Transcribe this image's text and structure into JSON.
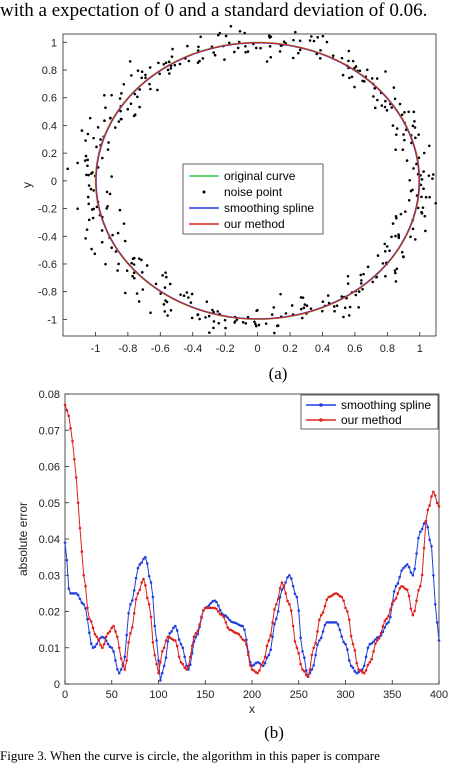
{
  "header": {
    "text": "with a expectation of 0 and a standard deviation of 0.06."
  },
  "figure": {
    "label_a": "(a)",
    "label_b": "(b)",
    "caption": "Figure 3. When the curve is circle, the algorithm in this paper is compare"
  },
  "chart_data": [
    {
      "type": "scatter",
      "panel": "a",
      "xlabel": "",
      "ylabel": "y",
      "xlim": [
        -1.2,
        1.1
      ],
      "ylim": [
        -1.12,
        1.06
      ],
      "xticks": [
        -1,
        -0.8,
        -0.6,
        -0.4,
        -0.2,
        0,
        0.2,
        0.4,
        0.6,
        0.8,
        1
      ],
      "yticks": [
        -1,
        -0.8,
        -0.6,
        -0.4,
        -0.2,
        0,
        0.2,
        0.4,
        0.6,
        0.8,
        1
      ],
      "xtick_labels": [
        "-1",
        "-0.8",
        "-0.6",
        "-0.4",
        "-0.2",
        "0",
        "0.2",
        "0.4",
        "0.6",
        "0.8",
        "1"
      ],
      "ytick_labels": [
        "-1",
        "-0.8",
        "-0.6",
        "-0.4",
        "-0.2",
        "0",
        "0.2",
        "0.4",
        "0.6",
        "0.8",
        "1"
      ],
      "legend_position": "center",
      "colors": {
        "original": "#2ecc40",
        "noise": "#000000",
        "smoothing": "#1f3fdd",
        "ours": "#e0201b"
      },
      "series": [
        {
          "name": "original curve",
          "kind": "circle",
          "cx": 0,
          "cy": 0,
          "r": 1
        },
        {
          "name": "noise point",
          "kind": "noise",
          "std": 0.06,
          "count": 400
        },
        {
          "name": "smoothing spline",
          "kind": "circle",
          "cx": 0.0,
          "cy": 0.0,
          "r": 0.995
        },
        {
          "name": "our method",
          "kind": "circle",
          "cx": 0.0,
          "cy": 0.0,
          "r": 0.998
        }
      ]
    },
    {
      "type": "line",
      "panel": "b",
      "xlabel": "x",
      "ylabel": "absolute error",
      "xlim": [
        0,
        400
      ],
      "ylim": [
        0,
        0.08
      ],
      "xticks": [
        0,
        50,
        100,
        150,
        200,
        250,
        300,
        350,
        400
      ],
      "yticks": [
        0,
        0.01,
        0.02,
        0.03,
        0.04,
        0.05,
        0.06,
        0.07,
        0.08
      ],
      "xtick_labels": [
        "0",
        "50",
        "100",
        "150",
        "200",
        "250",
        "300",
        "350",
        "400"
      ],
      "ytick_labels": [
        "0",
        "0.01",
        "0.02",
        "0.03",
        "0.04",
        "0.05",
        "0.06",
        "0.07",
        "0.08"
      ],
      "legend_position": "top-right",
      "series": [
        {
          "name": "smoothing spline",
          "color": "#1f3fdd",
          "x": [
            0,
            5,
            12,
            20,
            30,
            40,
            50,
            58,
            62,
            70,
            80,
            86,
            92,
            98,
            102,
            106,
            112,
            118,
            124,
            132,
            140,
            150,
            160,
            170,
            180,
            190,
            200,
            206,
            212,
            218,
            226,
            232,
            240,
            248,
            254,
            260,
            264,
            272,
            280,
            290,
            300,
            306,
            312,
            318,
            326,
            336,
            346,
            354,
            362,
            366,
            372,
            380,
            386,
            392,
            396,
            400
          ],
          "y": [
            0.039,
            0.025,
            0.025,
            0.022,
            0.01,
            0.013,
            0.01,
            0.003,
            0.005,
            0.022,
            0.033,
            0.035,
            0.028,
            0.012,
            0.001,
            0.005,
            0.014,
            0.016,
            0.011,
            0.004,
            0.013,
            0.021,
            0.023,
            0.019,
            0.017,
            0.016,
            0.005,
            0.006,
            0.005,
            0.008,
            0.018,
            0.026,
            0.03,
            0.024,
            0.009,
            0.002,
            0.004,
            0.012,
            0.017,
            0.017,
            0.011,
            0.005,
            0.003,
            0.004,
            0.011,
            0.013,
            0.017,
            0.027,
            0.032,
            0.033,
            0.03,
            0.042,
            0.045,
            0.038,
            0.022,
            0.012
          ]
        },
        {
          "name": "our method",
          "color": "#e0201b",
          "x": [
            0,
            4,
            8,
            12,
            16,
            20,
            26,
            34,
            40,
            46,
            52,
            56,
            60,
            64,
            70,
            78,
            84,
            90,
            96,
            100,
            104,
            110,
            118,
            124,
            130,
            140,
            150,
            160,
            168,
            176,
            184,
            192,
            200,
            206,
            212,
            218,
            226,
            232,
            240,
            248,
            254,
            260,
            266,
            274,
            282,
            290,
            296,
            302,
            308,
            314,
            320,
            326,
            334,
            344,
            352,
            360,
            366,
            372,
            380,
            388,
            394,
            400
          ],
          "y": [
            0.077,
            0.074,
            0.067,
            0.057,
            0.043,
            0.03,
            0.018,
            0.013,
            0.01,
            0.014,
            0.016,
            0.013,
            0.007,
            0.004,
            0.014,
            0.025,
            0.029,
            0.022,
            0.008,
            0.003,
            0.009,
            0.013,
            0.012,
            0.006,
            0.004,
            0.014,
            0.021,
            0.021,
            0.019,
            0.015,
            0.014,
            0.012,
            0.004,
            0.003,
            0.006,
            0.012,
            0.022,
            0.028,
            0.022,
            0.01,
            0.004,
            0.002,
            0.01,
            0.019,
            0.024,
            0.025,
            0.024,
            0.02,
            0.011,
            0.004,
            0.003,
            0.006,
            0.012,
            0.018,
            0.023,
            0.027,
            0.026,
            0.019,
            0.027,
            0.048,
            0.053,
            0.049
          ]
        }
      ]
    }
  ]
}
